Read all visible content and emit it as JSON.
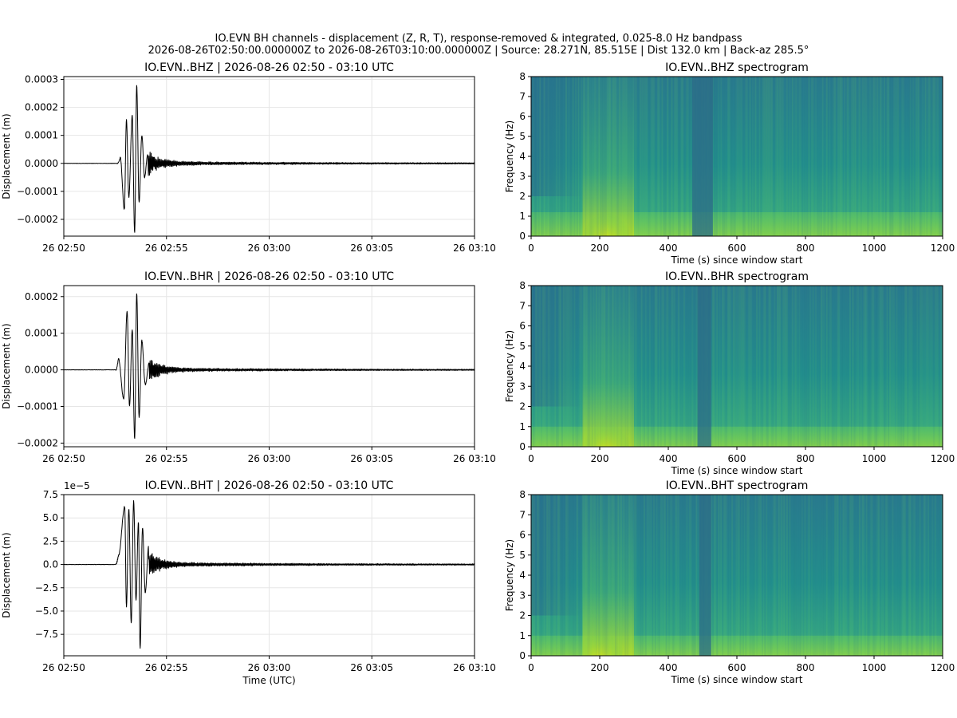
{
  "figure": {
    "suptitle_line1": "IO.EVN BH channels - displacement (Z, R, T), response-removed & integrated, 0.025-8.0 Hz bandpass",
    "suptitle_line2": "2026-08-26T02:50:00.000000Z to 2026-08-26T03:10:00.000000Z  |  Source: 28.271N, 85.515E  |  Dist 132.0 km  |  Back-az 285.5°"
  },
  "chart_data": [
    {
      "type": "line",
      "title": "IO.EVN..BHZ  |  2026-08-26 02:50 - 03:10 UTC",
      "xlabel": "",
      "ylabel": "Displacement (m)",
      "xlim": [
        "2026-08-26T02:50",
        "2026-08-26T03:10"
      ],
      "xticks": [
        "26 02:50",
        "26 02:55",
        "26 03:00",
        "26 03:05",
        "26 03:10"
      ],
      "ylim": [
        -0.00026,
        0.00031
      ],
      "yticks": [
        -0.0002,
        -0.0001,
        0.0,
        0.0001,
        0.0002,
        0.0003
      ],
      "ytick_labels": [
        "−0.0002",
        "−0.0001",
        "0.0000",
        "0.0001",
        "0.0002",
        "0.0003"
      ],
      "offset_label": "",
      "grid": true,
      "line_color": "#000000",
      "peaks": [
        {
          "t": "02:52:45",
          "v": 2e-05
        },
        {
          "t": "02:52:57",
          "v": -0.000165
        },
        {
          "t": "02:53:03",
          "v": 0.000155
        },
        {
          "t": "02:53:10",
          "v": -0.00012
        },
        {
          "t": "02:53:20",
          "v": 0.00017
        },
        {
          "t": "02:53:27",
          "v": -0.00025
        },
        {
          "t": "02:53:33",
          "v": 0.00028
        },
        {
          "t": "02:53:40",
          "v": -0.00014
        },
        {
          "t": "02:53:48",
          "v": 0.0001
        },
        {
          "t": "02:53:56",
          "v": -5e-05
        },
        {
          "t": "02:54:05",
          "v": 3e-05
        }
      ]
    },
    {
      "type": "heatmap",
      "title": "IO.EVN..BHZ spectrogram",
      "xlabel": "Time (s) since window start",
      "ylabel": "Frequency (Hz)",
      "xlim": [
        0,
        1200
      ],
      "ylim": [
        0,
        8
      ],
      "xticks": [
        0,
        200,
        400,
        600,
        800,
        1000,
        1200
      ],
      "yticks": [
        0,
        1,
        2,
        3,
        4,
        5,
        6,
        7,
        8
      ],
      "colormap": "viridis",
      "features": {
        "energy_burst_s": [
          150,
          300
        ],
        "peak_s": 220,
        "low_freq_band_hz": 1.2,
        "gap_s": [
          470,
          530
        ]
      }
    },
    {
      "type": "line",
      "title": "IO.EVN..BHR  |  2026-08-26 02:50 - 03:10 UTC",
      "xlabel": "",
      "ylabel": "Displacement (m)",
      "xlim": [
        "2026-08-26T02:50",
        "2026-08-26T03:10"
      ],
      "xticks": [
        "26 02:50",
        "26 02:55",
        "26 03:00",
        "26 03:05",
        "26 03:10"
      ],
      "ylim": [
        -0.00021,
        0.00023
      ],
      "yticks": [
        -0.0002,
        -0.0001,
        0.0,
        0.0001,
        0.0002
      ],
      "ytick_labels": [
        "−0.0002",
        "−0.0001",
        "0.0000",
        "0.0001",
        "0.0002"
      ],
      "offset_label": "",
      "grid": true,
      "line_color": "#000000",
      "peaks": [
        {
          "t": "02:52:40",
          "v": 3e-05
        },
        {
          "t": "02:52:55",
          "v": -8e-05
        },
        {
          "t": "02:53:05",
          "v": 0.00016
        },
        {
          "t": "02:53:12",
          "v": -0.0001
        },
        {
          "t": "02:53:20",
          "v": 0.00011
        },
        {
          "t": "02:53:27",
          "v": -0.00019
        },
        {
          "t": "02:53:33",
          "v": 0.00021
        },
        {
          "t": "02:53:40",
          "v": -0.00013
        },
        {
          "t": "02:53:48",
          "v": 8e-05
        },
        {
          "t": "02:53:58",
          "v": -4e-05
        },
        {
          "t": "02:54:10",
          "v": 2e-05
        }
      ]
    },
    {
      "type": "heatmap",
      "title": "IO.EVN..BHR spectrogram",
      "xlabel": "Time (s) since window start",
      "ylabel": "Frequency (Hz)",
      "xlim": [
        0,
        1200
      ],
      "ylim": [
        0,
        8
      ],
      "xticks": [
        0,
        200,
        400,
        600,
        800,
        1000,
        1200
      ],
      "yticks": [
        0,
        1,
        2,
        3,
        4,
        5,
        6,
        7,
        8
      ],
      "colormap": "viridis",
      "features": {
        "energy_burst_s": [
          150,
          300
        ],
        "peak_s": 220,
        "low_freq_band_hz": 1.0,
        "gap_s": [
          485,
          525
        ]
      }
    },
    {
      "type": "line",
      "title": "IO.EVN..BHT  |  2026-08-26 02:50 - 03:10 UTC",
      "xlabel": "Time (UTC)",
      "ylabel": "Displacement (m)",
      "xlim": [
        "2026-08-26T02:50",
        "2026-08-26T03:10"
      ],
      "xticks": [
        "26 02:50",
        "26 02:55",
        "26 03:00",
        "26 03:05",
        "26 03:10"
      ],
      "ylim": [
        -9.8,
        7.5
      ],
      "yticks": [
        -7.5,
        -5.0,
        -2.5,
        0.0,
        2.5,
        5.0,
        7.5
      ],
      "ytick_labels": [
        "−7.5",
        "−5.0",
        "−2.5",
        "0.0",
        "2.5",
        "5.0",
        "7.5"
      ],
      "offset_label": "1e−5",
      "grid": true,
      "line_color": "#000000",
      "peaks": [
        {
          "t": "02:52:40",
          "v": 1.0
        },
        {
          "t": "02:52:58",
          "v": 6.2
        },
        {
          "t": "02:53:03",
          "v": -4.5
        },
        {
          "t": "02:53:10",
          "v": 6.0
        },
        {
          "t": "02:53:17",
          "v": -6.3
        },
        {
          "t": "02:53:24",
          "v": 6.8
        },
        {
          "t": "02:53:31",
          "v": -3.8
        },
        {
          "t": "02:53:38",
          "v": 4.5
        },
        {
          "t": "02:53:43",
          "v": -9.0
        },
        {
          "t": "02:53:50",
          "v": 4.0
        },
        {
          "t": "02:53:58",
          "v": -3.0
        },
        {
          "t": "02:54:08",
          "v": 2.0
        }
      ]
    },
    {
      "type": "heatmap",
      "title": "IO.EVN..BHT spectrogram",
      "xlabel": "Time (s) since window start",
      "ylabel": "Frequency (Hz)",
      "xlim": [
        0,
        1200
      ],
      "ylim": [
        0,
        8
      ],
      "xticks": [
        0,
        200,
        400,
        600,
        800,
        1000,
        1200
      ],
      "yticks": [
        0,
        1,
        2,
        3,
        4,
        5,
        6,
        7,
        8
      ],
      "colormap": "viridis",
      "features": {
        "energy_burst_s": [
          150,
          300
        ],
        "peak_s": 200,
        "low_freq_band_hz": 1.0,
        "gap_s": [
          490,
          525
        ]
      }
    }
  ]
}
